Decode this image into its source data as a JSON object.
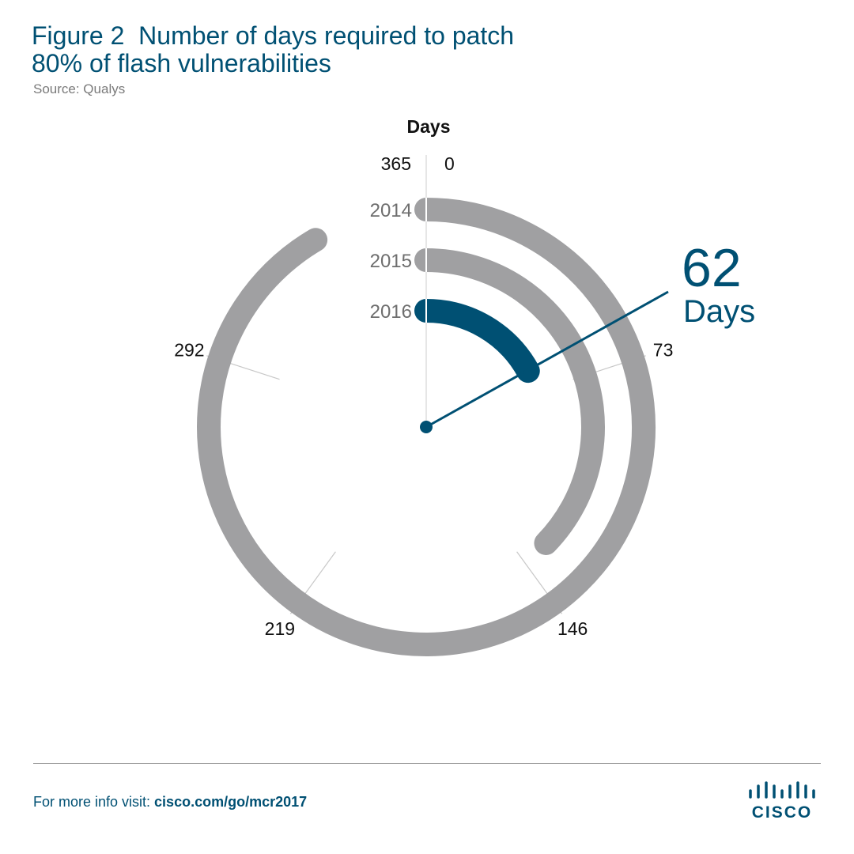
{
  "header": {
    "title_line1": "Figure 2  Number of days required to patch",
    "title_line2": "80% of flash vulnerabilities",
    "source": "Source: Qualys"
  },
  "chart_data": {
    "type": "radial-bar",
    "axis_title": "Days",
    "scale_max": 365,
    "ticks": [
      {
        "value": 0,
        "label": "0"
      },
      {
        "value": 73,
        "label": "73"
      },
      {
        "value": 146,
        "label": "146"
      },
      {
        "value": 219,
        "label": "219"
      },
      {
        "value": 292,
        "label": "292"
      },
      {
        "value": 365,
        "label": "365"
      }
    ],
    "series": [
      {
        "name": "2014",
        "value": 334,
        "color": "#a0a0a2"
      },
      {
        "name": "2015",
        "value": 136,
        "color": "#a0a0a2"
      },
      {
        "name": "2016",
        "value": 62,
        "color": "#005073"
      }
    ],
    "callout": {
      "value": "62",
      "unit": "Days",
      "color": "#005073"
    }
  },
  "footer": {
    "prefix": "For more info visit: ",
    "url": "cisco.com/go/mcr2017",
    "logo_text": "CISCO"
  },
  "colors": {
    "accent": "#005073",
    "ring": "#a0a0a2"
  }
}
